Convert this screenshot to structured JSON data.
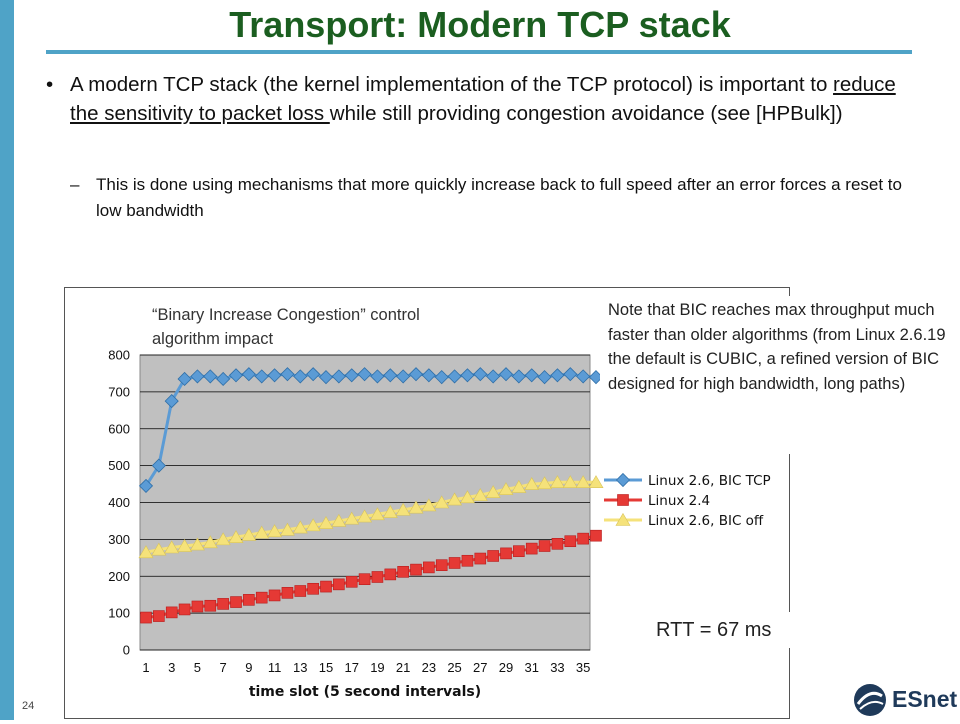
{
  "slide": {
    "title": "Transport: Modern TCP stack",
    "bullet": {
      "marker": "•",
      "pre": "A modern TCP stack (the kernel implementation of the TCP protocol) is important to ",
      "underlined": "reduce the sensitivity to packet loss ",
      "post": "while still providing congestion avoidance (see [HPBulk])"
    },
    "sub_bullet": {
      "marker": "–",
      "text": "This is done using mechanisms that more quickly increase back to full speed after an error forces a reset to low bandwidth"
    },
    "note": "Note that BIC reaches max throughput much faster than older algorithms (from Linux 2.6.19 the default is CUBIC, a refined version of BIC designed for high bandwidth, long paths)",
    "rtt": "RTT = 67 ms",
    "page_number": "24",
    "logo_text": "ESnet"
  },
  "chart_data": {
    "type": "line",
    "title": "“Binary Increase Congestion” control algorithm impact",
    "xlabel": "time slot (5 second intervals)",
    "ylabel": "",
    "ylim": [
      0,
      800
    ],
    "yticks": [
      0,
      100,
      200,
      300,
      400,
      500,
      600,
      700,
      800
    ],
    "x": [
      1,
      2,
      3,
      4,
      5,
      6,
      7,
      8,
      9,
      10,
      11,
      12,
      13,
      14,
      15,
      16,
      17,
      18,
      19,
      20,
      21,
      22,
      23,
      24,
      25,
      26,
      27,
      28,
      29,
      30,
      31,
      32,
      33,
      34,
      35,
      36
    ],
    "xticks": [
      "1",
      "3",
      "5",
      "7",
      "9",
      "11",
      "13",
      "15",
      "17",
      "19",
      "21",
      "23",
      "25",
      "27",
      "29",
      "31",
      "33",
      "35"
    ],
    "grid": true,
    "legend_position": "right",
    "plot_background": "#c0c0c0",
    "series": [
      {
        "name": "Linux 2.6, BIC TCP",
        "color": "#5b9bd5",
        "marker": "diamond",
        "values": [
          445,
          500,
          675,
          735,
          742,
          742,
          735,
          745,
          748,
          742,
          745,
          748,
          742,
          748,
          740,
          742,
          745,
          748,
          742,
          745,
          742,
          748,
          745,
          740,
          742,
          745,
          748,
          742,
          748,
          742,
          745,
          740,
          745,
          748,
          742,
          740
        ]
      },
      {
        "name": "Linux 2.4",
        "color": "#e53935",
        "marker": "square",
        "values": [
          88,
          92,
          102,
          110,
          118,
          120,
          125,
          130,
          136,
          142,
          148,
          155,
          160,
          166,
          172,
          178,
          185,
          192,
          198,
          205,
          212,
          218,
          224,
          230,
          236,
          242,
          248,
          255,
          262,
          268,
          275,
          282,
          288,
          295,
          302,
          310
        ]
      },
      {
        "name": "Linux 2.6, BIC off",
        "color": "#f5e27a",
        "marker": "triangle",
        "values": [
          265,
          272,
          278,
          282,
          286,
          292,
          300,
          306,
          312,
          318,
          322,
          326,
          332,
          338,
          344,
          350,
          356,
          362,
          368,
          374,
          380,
          386,
          392,
          400,
          408,
          414,
          420,
          428,
          436,
          442,
          450,
          452,
          455,
          455,
          455,
          455
        ]
      }
    ]
  }
}
